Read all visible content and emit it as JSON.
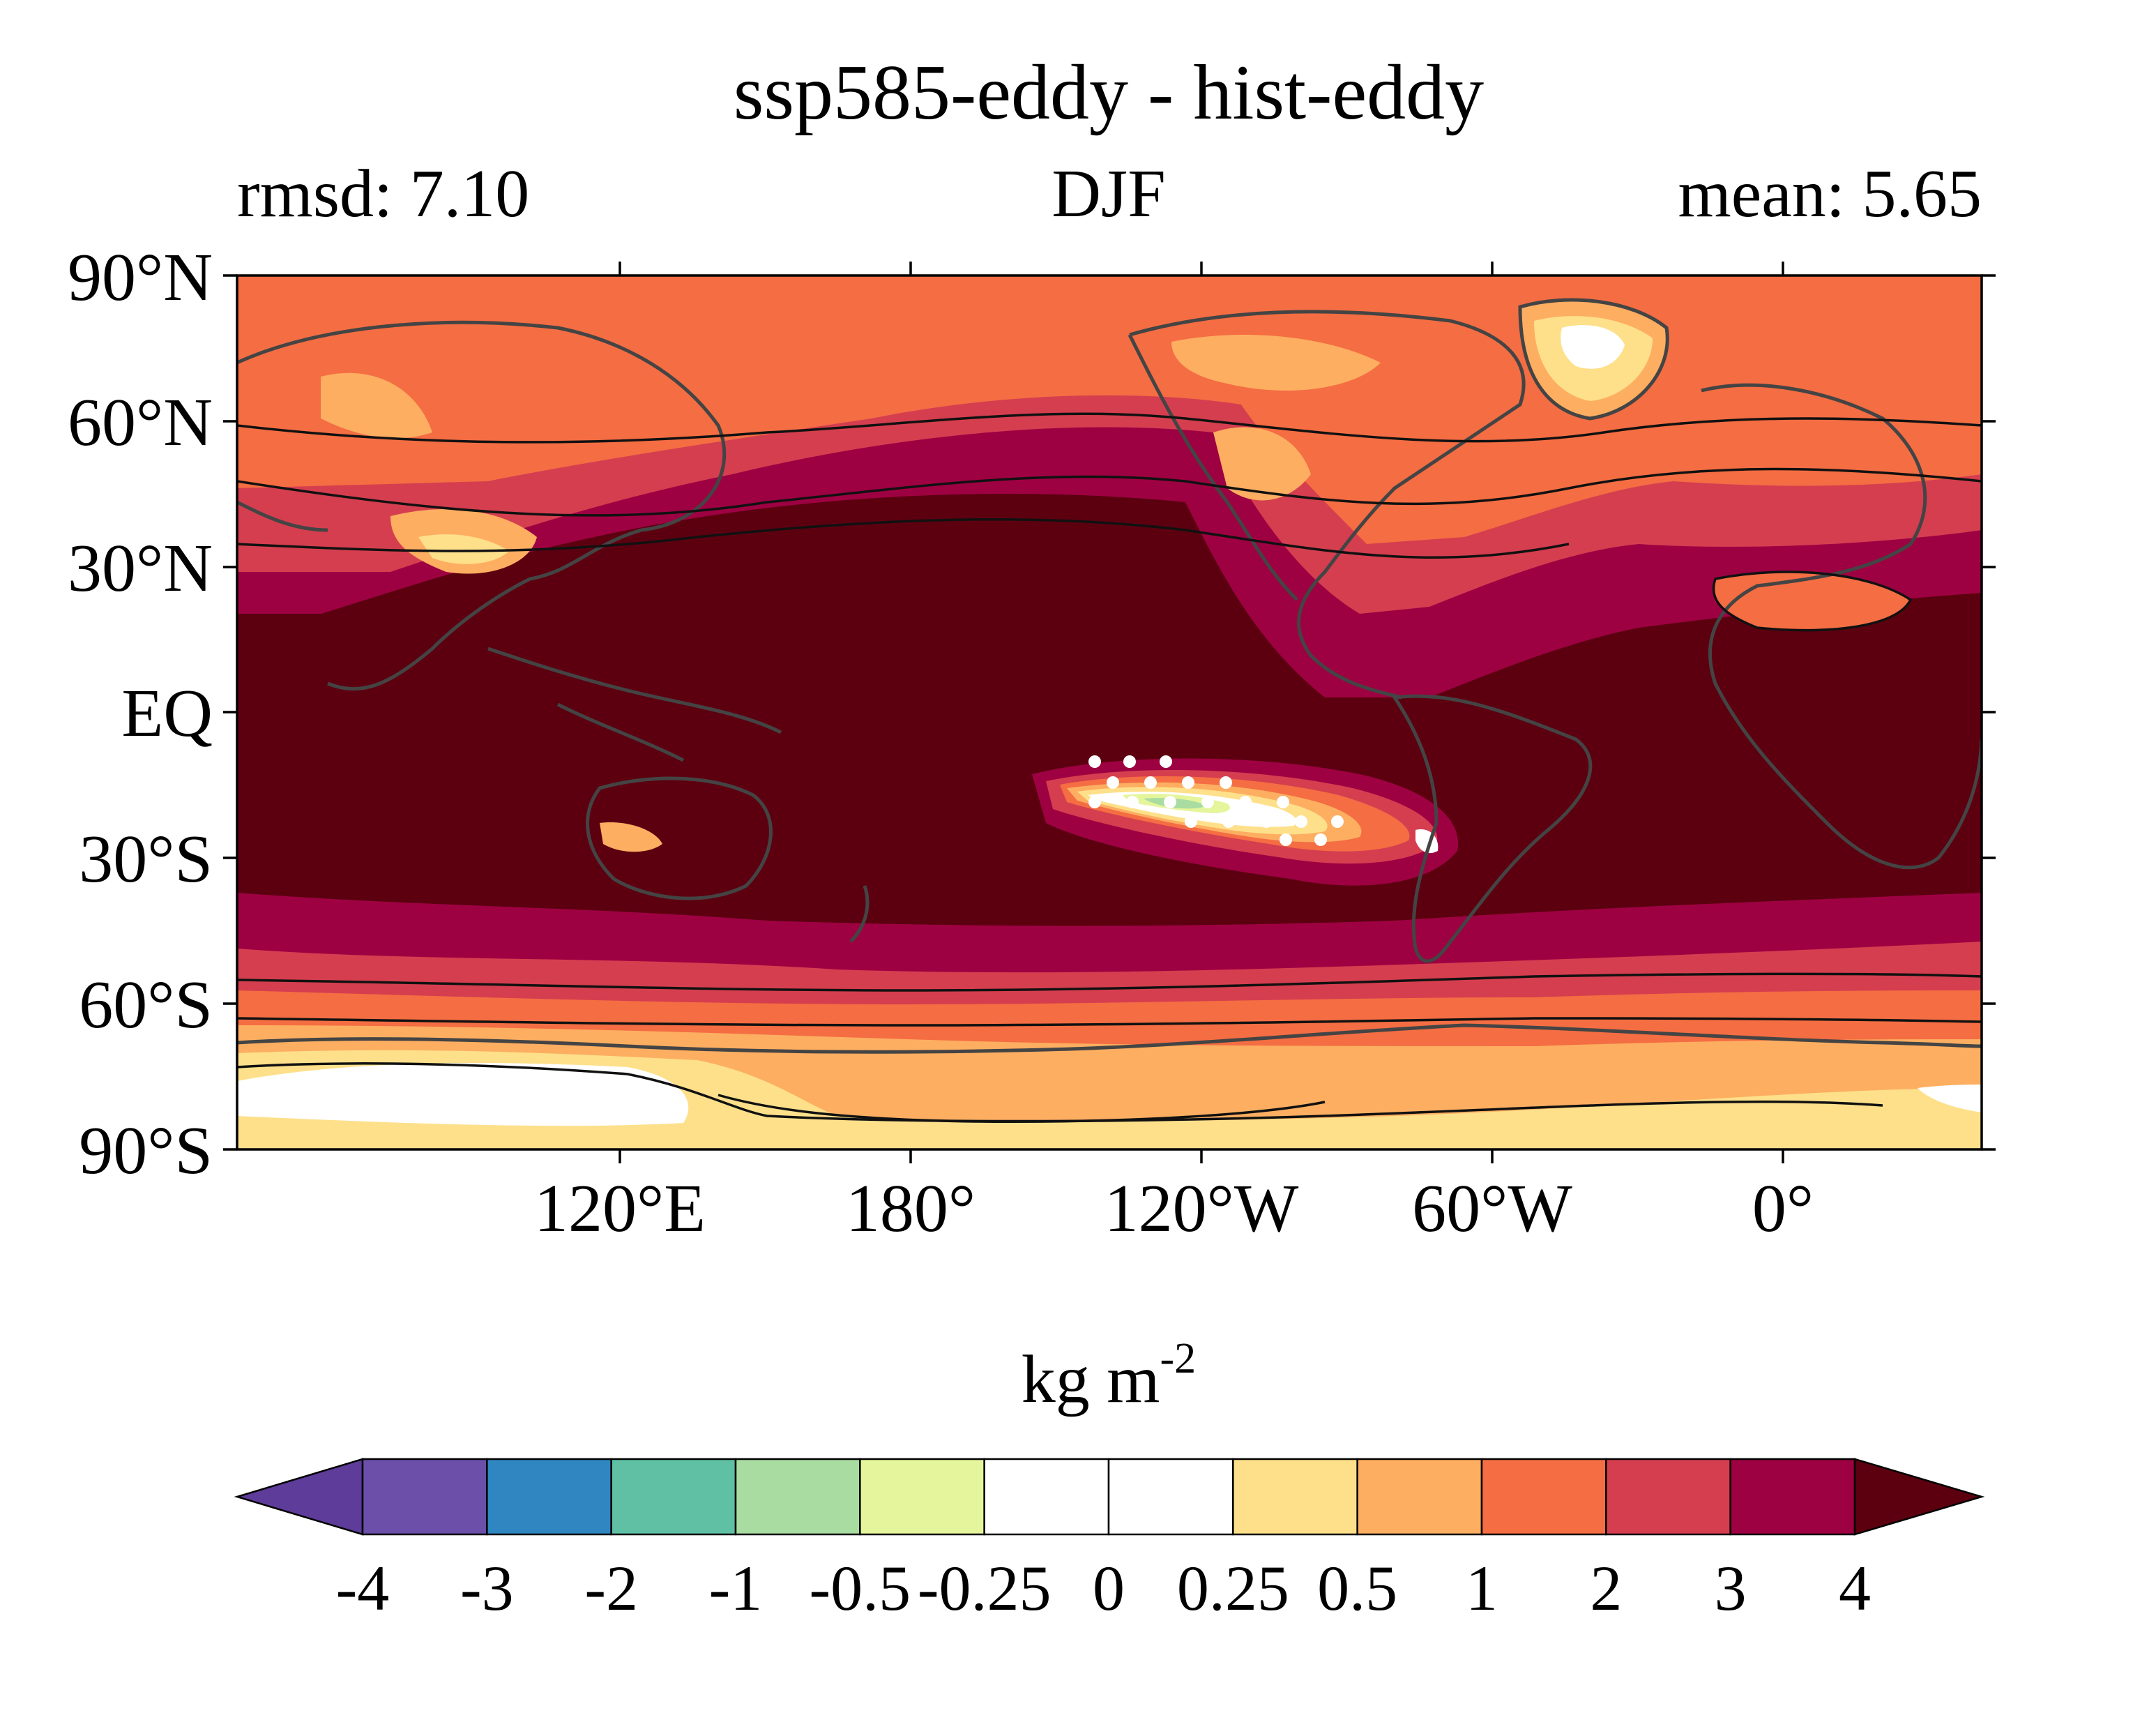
{
  "map": {
    "title": "ssp585-eddy - hist-eddy",
    "left_label": "rmsd: 7.10",
    "center_label": "DJF",
    "right_label": "mean: 5.65",
    "projection": "cylindrical equidistant, centered on 150°W",
    "lon_ticks": [
      "120°E",
      "180°",
      "120°W",
      "60°W",
      "0°"
    ],
    "lat_ticks": [
      "90°N",
      "60°N",
      "30°N",
      "EQ",
      "30°S",
      "60°S",
      "90°S"
    ],
    "colorbar": {
      "unit_base": "kg m",
      "unit_exp": "-2",
      "tick_labels": [
        "-4",
        "-3",
        "-2",
        "-1",
        "-0.5",
        "-0.25",
        "0",
        "0.25",
        "0.5",
        "1",
        "2",
        "3",
        "4"
      ],
      "colors": [
        "#5e3c99",
        "#6b4fa8",
        "#2f86c0",
        "#5fc0a4",
        "#a9dca0",
        "#e5f59c",
        "#ffffff",
        "#ffffff",
        "#fee08b",
        "#fdae61",
        "#f46d43",
        "#d53e4f",
        "#9e0142",
        "#5c0010"
      ]
    },
    "region_colors": {
      "gt4": "#5c0010",
      "r3_4": "#9e0142",
      "r2_3": "#d53e4f",
      "r1_2": "#f46d43",
      "r05_1": "#fdae61",
      "r025_05": "#fee08b",
      "r0_025": "#ffffff",
      "neg05": "#e5f59c",
      "neg1": "#a9dca0"
    },
    "stippling": "white dots mark significant regions"
  }
}
